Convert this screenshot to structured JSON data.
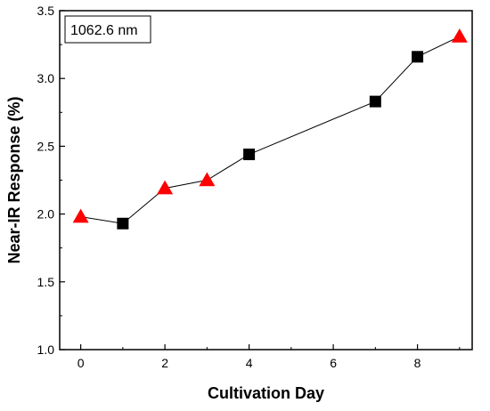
{
  "chart_data": {
    "type": "line",
    "xlabel": "Cultivation Day",
    "ylabel": "Near-IR Response (%)",
    "annotation": "1062.6 nm",
    "xlim": [
      -0.5,
      9.3
    ],
    "ylim": [
      1.0,
      3.5
    ],
    "xticks": [
      0,
      2,
      4,
      6,
      8
    ],
    "yticks": [
      1.0,
      1.5,
      2.0,
      2.5,
      3.0,
      3.5
    ],
    "grid": false,
    "x": [
      0,
      1,
      2,
      3,
      4,
      7,
      8,
      9
    ],
    "y": [
      1.98,
      1.93,
      2.19,
      2.25,
      2.44,
      2.83,
      3.16,
      3.31
    ],
    "markers": [
      "triangle",
      "square",
      "triangle",
      "triangle",
      "square",
      "square",
      "square",
      "triangle"
    ],
    "colors": {
      "triangle": "#ff0000",
      "square": "#000000",
      "line": "#000000"
    }
  }
}
